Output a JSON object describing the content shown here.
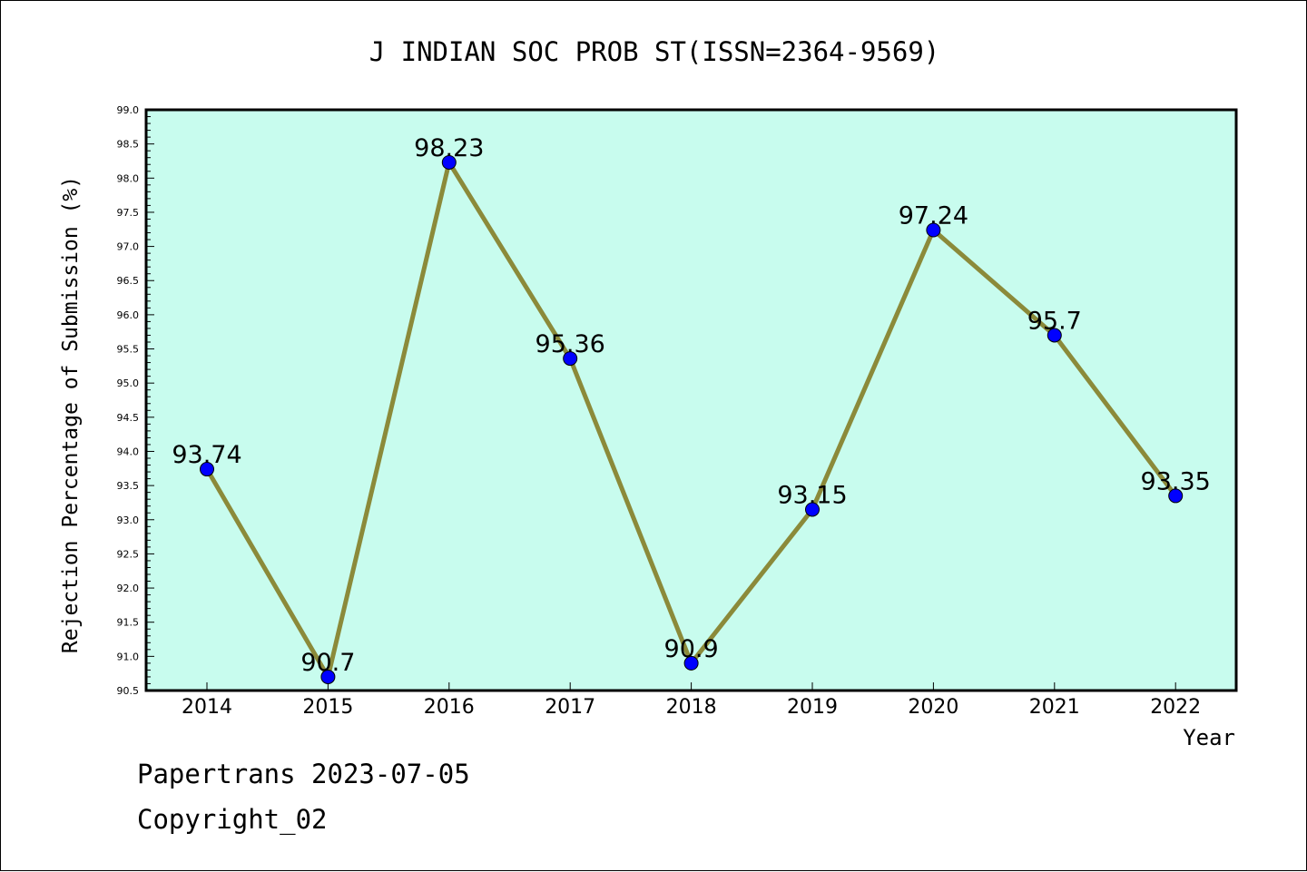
{
  "chart_data": {
    "type": "line",
    "title": "J INDIAN SOC PROB ST(ISSN=2364-9569)",
    "xlabel": "Year",
    "ylabel": "Rejection Percentage of Submission (%)",
    "categories": [
      "2014",
      "2015",
      "2016",
      "2017",
      "2018",
      "2019",
      "2020",
      "2021",
      "2022"
    ],
    "values": [
      93.74,
      90.7,
      98.23,
      95.36,
      90.9,
      93.15,
      97.24,
      95.7,
      93.35
    ],
    "data_labels": [
      "93.74",
      "90.7",
      "98.23",
      "95.36",
      "90.9",
      "93.15",
      "97.24",
      "95.7",
      "93.35"
    ],
    "ylim": [
      90.5,
      99.0
    ],
    "yticks": [
      "90.5",
      "91.0",
      "91.5",
      "92.0",
      "92.5",
      "93.0",
      "93.5",
      "94.0",
      "94.5",
      "95.0",
      "95.5",
      "96.0",
      "96.5",
      "97.0",
      "97.5",
      "98.0",
      "98.5",
      "99.0"
    ],
    "grid": false,
    "colors": {
      "plot_background": "#c8fcee",
      "line": "#8b8a3a",
      "marker": "#0000ff"
    }
  },
  "footer": {
    "line1": "Papertrans 2023-07-05",
    "line2": "Copyright_02"
  }
}
